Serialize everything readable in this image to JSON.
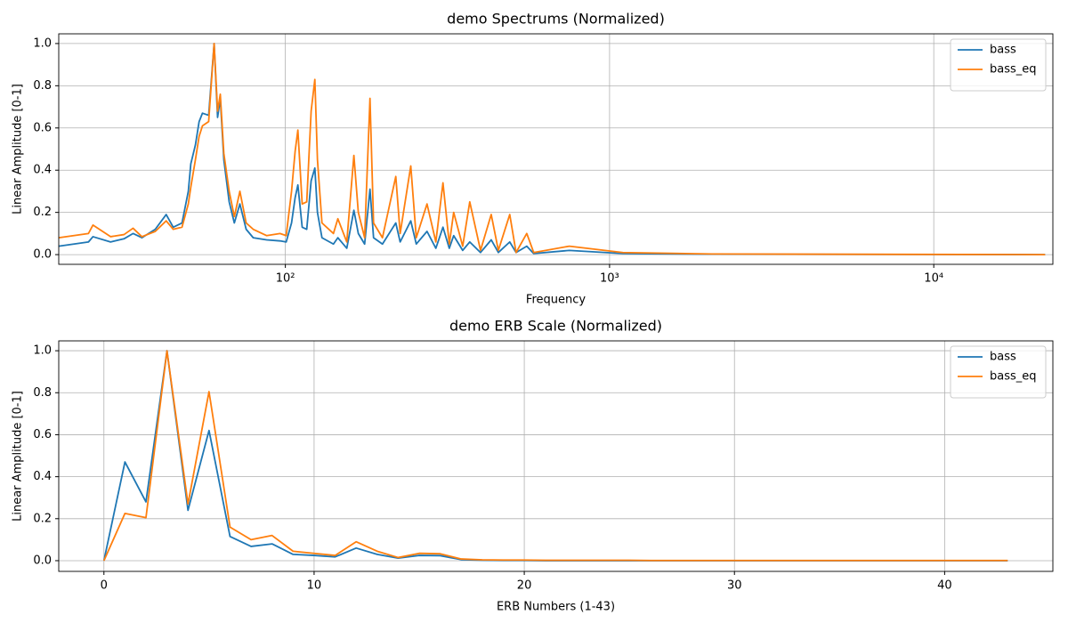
{
  "chart_data": [
    {
      "type": "line",
      "title": "demo Spectrums (Normalized)",
      "x_label": "Frequency",
      "y_label": "Linear Amplitude [0-1]",
      "xscale": "log",
      "grid": true,
      "legend": "upper right",
      "x": [
        20,
        24.7,
        25.5,
        28.9,
        31.8,
        33.9,
        36.1,
        39.7,
        42.9,
        45.1,
        48.0,
        50.2,
        51.1,
        52.8,
        54.2,
        55.5,
        58.0,
        60.3,
        61.8,
        63.0,
        64.6,
        67.1,
        69.6,
        72.4,
        75.7,
        79.6,
        87.5,
        96.3,
        100.6,
        104.5,
        107.2,
        109.3,
        112.7,
        116.4,
        120.1,
        123.3,
        125.6,
        129.7,
        140.7,
        145.2,
        154.7,
        162.7,
        167.9,
        175.6,
        182.4,
        187.1,
        199.3,
        219.1,
        226.0,
        243.7,
        253.4,
        273.5,
        291.2,
        306.3,
        320.4,
        330.5,
        352.4,
        370.5,
        399.9,
        431.5,
        453.9,
        492.2,
        514.8,
        555.4,
        583.5,
        751.4,
        1099,
        2070,
        22050
      ],
      "series": [
        {
          "name": "bass",
          "color": "#1f77b4",
          "values": [
            0.04,
            0.06,
            0.085,
            0.06,
            0.075,
            0.1,
            0.08,
            0.12,
            0.19,
            0.13,
            0.15,
            0.3,
            0.43,
            0.52,
            0.63,
            0.67,
            0.66,
            1.0,
            0.65,
            0.74,
            0.45,
            0.25,
            0.15,
            0.24,
            0.12,
            0.08,
            0.07,
            0.065,
            0.06,
            0.15,
            0.27,
            0.33,
            0.13,
            0.12,
            0.35,
            0.41,
            0.2,
            0.08,
            0.05,
            0.08,
            0.03,
            0.21,
            0.1,
            0.05,
            0.31,
            0.08,
            0.05,
            0.15,
            0.06,
            0.16,
            0.05,
            0.11,
            0.03,
            0.13,
            0.03,
            0.09,
            0.02,
            0.06,
            0.01,
            0.07,
            0.01,
            0.06,
            0.01,
            0.04,
            0.005,
            0.02,
            0.005,
            0.002,
            0
          ]
        },
        {
          "name": "bass_eq",
          "color": "#ff7f0e",
          "values": [
            0.08,
            0.1,
            0.14,
            0.085,
            0.095,
            0.125,
            0.085,
            0.11,
            0.16,
            0.12,
            0.13,
            0.24,
            0.32,
            0.45,
            0.56,
            0.61,
            0.63,
            1.0,
            0.68,
            0.76,
            0.48,
            0.3,
            0.18,
            0.3,
            0.15,
            0.12,
            0.09,
            0.1,
            0.09,
            0.3,
            0.49,
            0.59,
            0.24,
            0.25,
            0.68,
            0.83,
            0.45,
            0.15,
            0.1,
            0.17,
            0.06,
            0.47,
            0.2,
            0.08,
            0.74,
            0.15,
            0.08,
            0.37,
            0.1,
            0.42,
            0.08,
            0.24,
            0.06,
            0.34,
            0.05,
            0.2,
            0.04,
            0.25,
            0.02,
            0.19,
            0.02,
            0.19,
            0.01,
            0.1,
            0.01,
            0.04,
            0.01,
            0.003,
            0
          ]
        }
      ],
      "xlim": [
        20,
        23300
      ],
      "xticks": [
        {
          "value": 100,
          "label": "10²"
        },
        {
          "value": 1000,
          "label": "10³"
        },
        {
          "value": 10000,
          "label": "10⁴"
        }
      ],
      "ylim": [
        -0.046,
        1.046
      ],
      "yticks": [
        {
          "value": 0,
          "label": "0.0"
        },
        {
          "value": 0.2,
          "label": "0.2"
        },
        {
          "value": 0.4,
          "label": "0.4"
        },
        {
          "value": 0.6,
          "label": "0.6"
        },
        {
          "value": 0.8,
          "label": "0.8"
        },
        {
          "value": 1,
          "label": "1.0"
        }
      ]
    },
    {
      "type": "line",
      "title": "demo ERB Scale (Normalized)",
      "x_label": "ERB Numbers (1-43)",
      "y_label": "Linear Amplitude [0-1]",
      "xscale": "linear",
      "grid": true,
      "legend": "upper right",
      "x": [
        0,
        1,
        2,
        3,
        4,
        5,
        6,
        7,
        8,
        9,
        10,
        11,
        12,
        13,
        14,
        15,
        16,
        17,
        18,
        19,
        20,
        21,
        22,
        23,
        24,
        25,
        26,
        27,
        28,
        29,
        30,
        31,
        32,
        33,
        34,
        35,
        36,
        37,
        38,
        39,
        40,
        41,
        42,
        43
      ],
      "series": [
        {
          "name": "bass",
          "color": "#1f77b4",
          "values": [
            0,
            0.47,
            0.28,
            1.0,
            0.24,
            0.62,
            0.115,
            0.068,
            0.08,
            0.03,
            0.025,
            0.018,
            0.06,
            0.03,
            0.012,
            0.025,
            0.024,
            0.005,
            0.002,
            0.001,
            0.001,
            0,
            0,
            0,
            0,
            0,
            0,
            0,
            0,
            0,
            0,
            0,
            0,
            0,
            0,
            0,
            0,
            0,
            0,
            0,
            0,
            0,
            0,
            0
          ]
        },
        {
          "name": "bass_eq",
          "color": "#ff7f0e",
          "values": [
            0,
            0.225,
            0.205,
            1.0,
            0.27,
            0.805,
            0.16,
            0.1,
            0.12,
            0.045,
            0.035,
            0.025,
            0.09,
            0.045,
            0.015,
            0.035,
            0.033,
            0.008,
            0.004,
            0.003,
            0.003,
            0.002,
            0.002,
            0.002,
            0.002,
            0.002,
            0.001,
            0.001,
            0.001,
            0.001,
            0.001,
            0.001,
            0.001,
            0.001,
            0.001,
            0.001,
            0.001,
            0.001,
            0.001,
            0.001,
            0.001,
            0.001,
            0.001,
            0.001
          ]
        }
      ],
      "xlim": [
        -2.15,
        45.15
      ],
      "xticks": [
        0,
        10,
        20,
        30,
        40
      ],
      "ylim": [
        -0.051,
        1.047
      ],
      "yticks": [
        {
          "value": 0,
          "label": "0.0"
        },
        {
          "value": 0.2,
          "label": "0.2"
        },
        {
          "value": 0.4,
          "label": "0.4"
        },
        {
          "value": 0.6,
          "label": "0.6"
        },
        {
          "value": 0.8,
          "label": "0.8"
        },
        {
          "value": 1,
          "label": "1.0"
        }
      ]
    }
  ]
}
